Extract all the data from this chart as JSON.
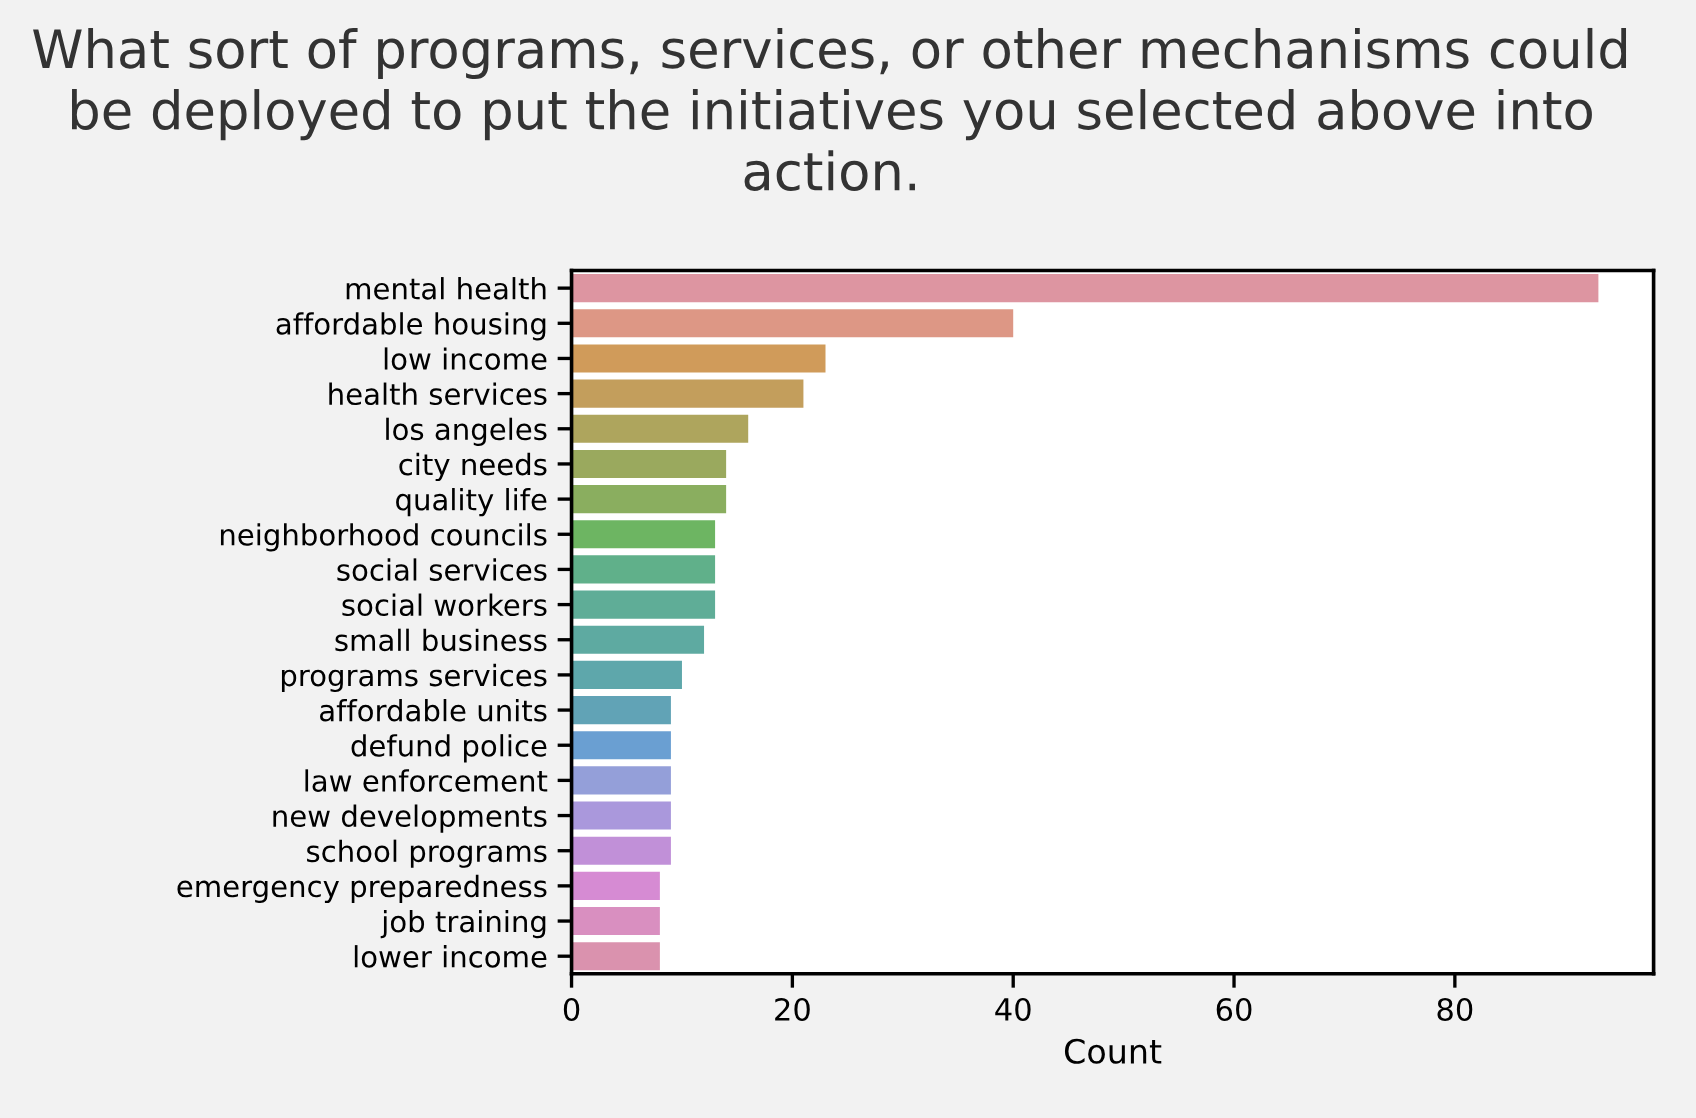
{
  "chart_data": {
    "type": "bar",
    "orientation": "horizontal",
    "title": "What sort of programs, services, or other mechanisms could be deployed to put the initiatives you selected above into action.",
    "xlabel": "Count",
    "categories": [
      "mental health",
      "affordable housing",
      "low income",
      "health services",
      "los angeles",
      "city needs",
      "quality life",
      "neighborhood councils",
      "social services",
      "social workers",
      "small business",
      "programs services",
      "affordable units",
      "defund police",
      "law enforcement",
      "new developments",
      "school programs",
      "emergency preparedness",
      "job training",
      "lower income"
    ],
    "values": [
      93,
      40,
      23,
      21,
      16,
      14,
      14,
      13,
      13,
      13,
      12,
      10,
      9,
      9,
      9,
      9,
      9,
      8,
      8,
      8
    ],
    "colors": [
      "#dd95a1",
      "#dd9785",
      "#d09b5a",
      "#c39e5c",
      "#aea55d",
      "#9aa95e",
      "#8aae5f",
      "#6db562",
      "#60b08a",
      "#5fad97",
      "#5eaaa1",
      "#5ea7ab",
      "#61a3b6",
      "#6a9fd2",
      "#949fd9",
      "#aa98dc",
      "#c190d8",
      "#d68bd3",
      "#d98fc0",
      "#da92ae"
    ],
    "xlim": [
      0,
      98
    ],
    "xticks": [
      0,
      20,
      40,
      60,
      80
    ],
    "grid": false,
    "legend": false
  }
}
